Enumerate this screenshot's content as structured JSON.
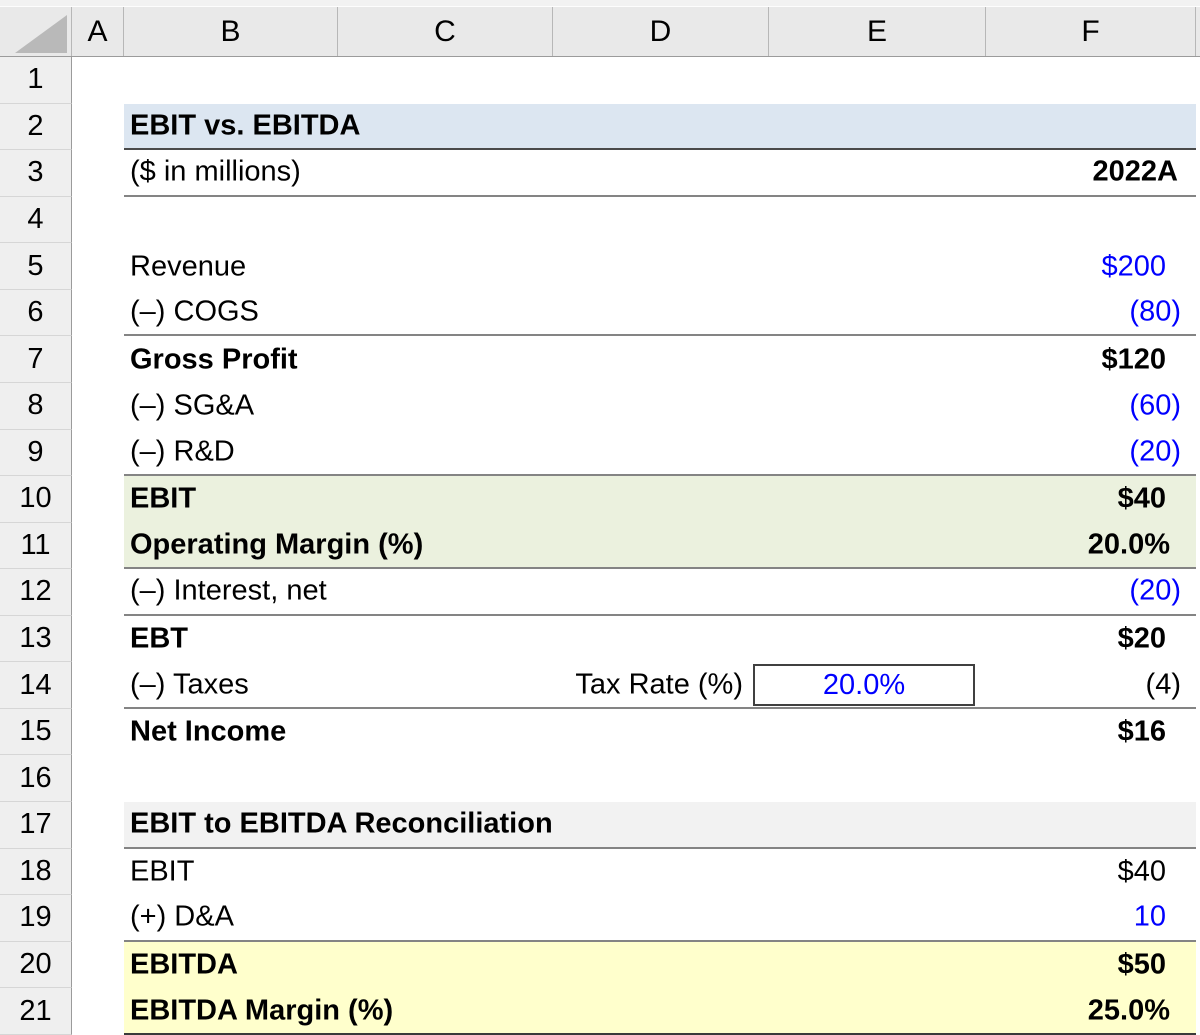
{
  "app": {
    "type": "spreadsheet-grid"
  },
  "column_headers": [
    "A",
    "B",
    "C",
    "D",
    "E",
    "F"
  ],
  "row_headers": [
    "1",
    "2",
    "3",
    "4",
    "5",
    "6",
    "7",
    "8",
    "9",
    "10",
    "11",
    "12",
    "13",
    "14",
    "15",
    "16",
    "17",
    "18",
    "19",
    "20",
    "21"
  ],
  "colors": {
    "title_fill": "#DCE6F1",
    "ebit_fill": "#EBF1DE",
    "section_fill": "#F2F2F2",
    "ebitda_fill": "#FFFFCC",
    "input_text_blue": "#0000FF",
    "header_gray": "#E9E9E9"
  },
  "rows": {
    "r2": {
      "label": "EBIT vs. EBITDA"
    },
    "r3": {
      "label": "($ in millions)",
      "value": "2022A"
    },
    "r5": {
      "label": "Revenue",
      "value": "$200"
    },
    "r6": {
      "label": "(–) COGS",
      "value": "(80)"
    },
    "r7": {
      "label": "Gross Profit",
      "value": "$120"
    },
    "r8": {
      "label": "(–) SG&A",
      "value": "(60)"
    },
    "r9": {
      "label": "(–) R&D",
      "value": "(20)"
    },
    "r10": {
      "label": "EBIT",
      "value": "$40"
    },
    "r11": {
      "label": "Operating Margin (%)",
      "value": "20.0%"
    },
    "r12": {
      "label": "(–) Interest, net",
      "value": "(20)"
    },
    "r13": {
      "label": "EBT",
      "value": "$20"
    },
    "r14": {
      "label": "(–) Taxes",
      "mid_label": "Tax Rate (%)",
      "input_value": "20.0%",
      "value": "(4)"
    },
    "r15": {
      "label": "Net Income",
      "value": "$16"
    },
    "r17": {
      "label": "EBIT to EBITDA Reconciliation"
    },
    "r18": {
      "label": "EBIT",
      "value": "$40"
    },
    "r19": {
      "label": "(+) D&A",
      "value": "10"
    },
    "r20": {
      "label": "EBITDA",
      "value": "$50"
    },
    "r21": {
      "label": "EBITDA Margin (%)",
      "value": "25.0%"
    }
  }
}
